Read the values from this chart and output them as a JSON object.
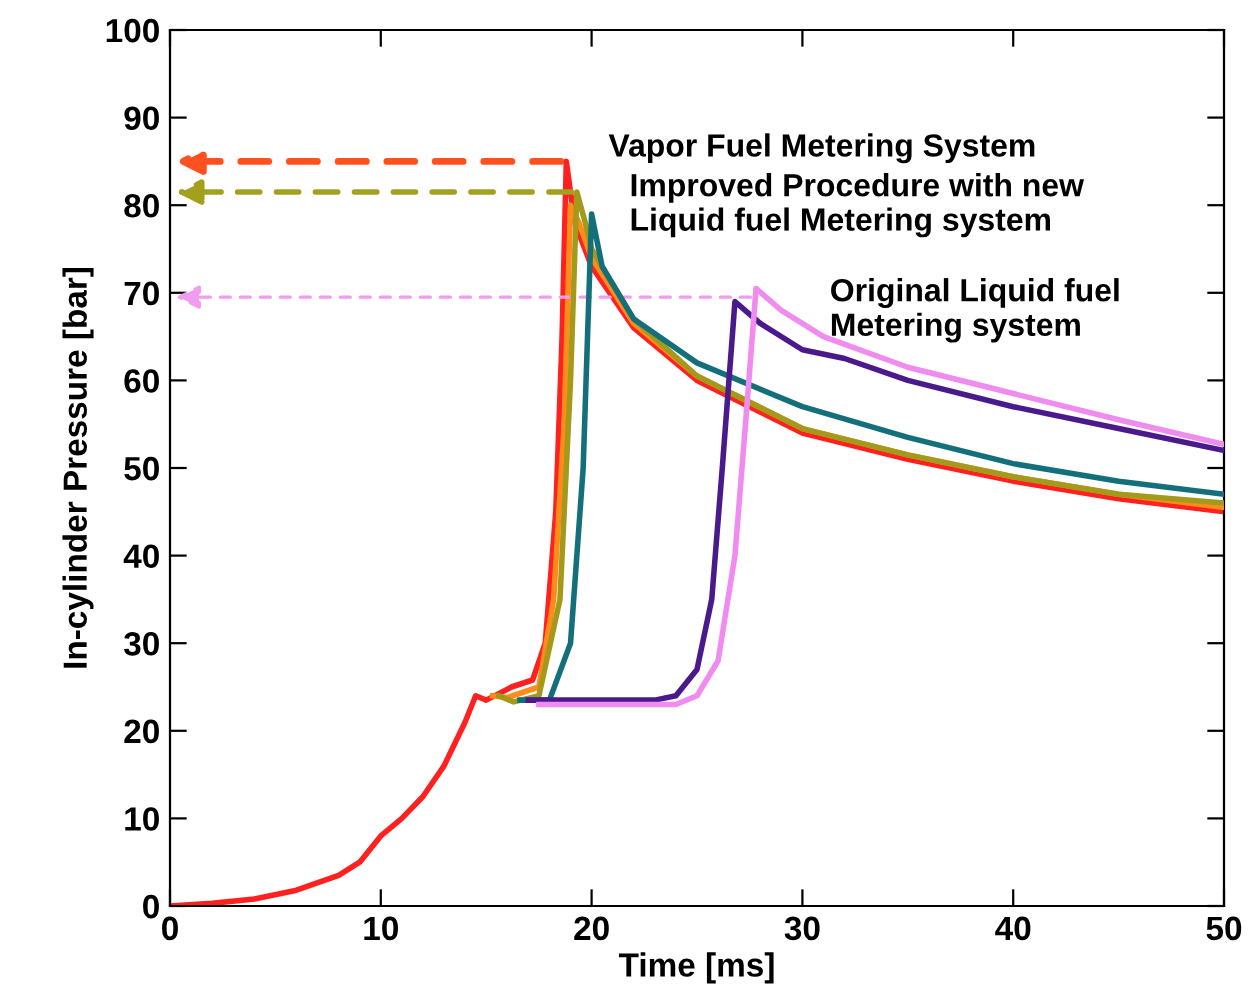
{
  "chart_data": {
    "type": "line",
    "xlabel": "Time [ms]",
    "ylabel": "In-cylinder Pressure [bar]",
    "xlim": [
      0,
      50
    ],
    "ylim": [
      0,
      100
    ],
    "xticks": [
      0,
      10,
      20,
      30,
      40,
      50
    ],
    "yticks": [
      0,
      10,
      20,
      30,
      40,
      50,
      60,
      70,
      80,
      90,
      100
    ],
    "grid": false,
    "legend": false,
    "series": [
      {
        "color": "#ff2020",
        "x": [
          0,
          2,
          4,
          6,
          8,
          9,
          10,
          11,
          12,
          13,
          14,
          14.5,
          15,
          16.2,
          17.2,
          17.8,
          18.3,
          18.6,
          18.8,
          19.2,
          20,
          22,
          25,
          30,
          35,
          40,
          45,
          50
        ],
        "values": [
          0,
          0.3,
          0.8,
          1.8,
          3.5,
          5,
          8,
          10,
          12.5,
          16,
          21,
          24,
          23.5,
          25,
          25.8,
          30,
          45,
          65,
          85,
          78,
          73,
          66,
          60,
          54,
          51,
          48.5,
          46.5,
          45
        ]
      },
      {
        "color": "#ff8c1a",
        "x": [
          15.3,
          16,
          17.5,
          18.2,
          18.7,
          19.0,
          19.4,
          20,
          22,
          25,
          30,
          35,
          40,
          45,
          50
        ],
        "values": [
          24,
          23.8,
          25,
          35,
          55,
          80,
          78,
          74,
          66.5,
          60.5,
          54.5,
          51.5,
          49,
          47,
          45.5
        ]
      },
      {
        "color": "#a39a1c",
        "x": [
          15.6,
          16.3,
          17.5,
          18.5,
          19.0,
          19.3,
          19.7,
          20,
          22,
          25,
          30,
          35,
          40,
          45,
          50
        ],
        "values": [
          24,
          23.3,
          24,
          35,
          60,
          81.5,
          78,
          75,
          67,
          60.5,
          54.5,
          51.5,
          49,
          47,
          46
        ]
      },
      {
        "color": "#13707a",
        "x": [
          16.6,
          18,
          19,
          19.6,
          20,
          20.5,
          22,
          25,
          30,
          35,
          40,
          45,
          50
        ],
        "values": [
          23.5,
          23.5,
          30,
          50,
          79,
          73,
          67,
          62,
          57,
          53.5,
          50.5,
          48.5,
          47
        ]
      },
      {
        "color": "#4a1a8c",
        "x": [
          17,
          20,
          23,
          24,
          25,
          25.7,
          26.2,
          26.8,
          28,
          30,
          32,
          35,
          40,
          45,
          50
        ],
        "values": [
          23.5,
          23.5,
          23.5,
          24,
          27,
          35,
          50,
          69,
          66.5,
          63.5,
          62.5,
          60,
          57,
          54.5,
          52
        ]
      },
      {
        "color": "#f08cf0",
        "x": [
          17.5,
          20,
          24,
          25,
          26,
          26.8,
          27.3,
          27.8,
          29,
          31,
          35,
          40,
          45,
          50
        ],
        "values": [
          23,
          23,
          23,
          24,
          28,
          40,
          55,
          70.5,
          68,
          65,
          61.5,
          58.5,
          55.5,
          52.7
        ]
      }
    ],
    "annotations": [
      {
        "text": "Vapor Fuel Metering System",
        "x": 18.8,
        "y": 85
      },
      {
        "text": "Improved Procedure with new\nLiquid fuel Metering system",
        "x": 19.3,
        "y": 81.5
      },
      {
        "text": "Original Liquid fuel\nMetering system",
        "x": 27.8,
        "y": 69.5
      }
    ]
  }
}
